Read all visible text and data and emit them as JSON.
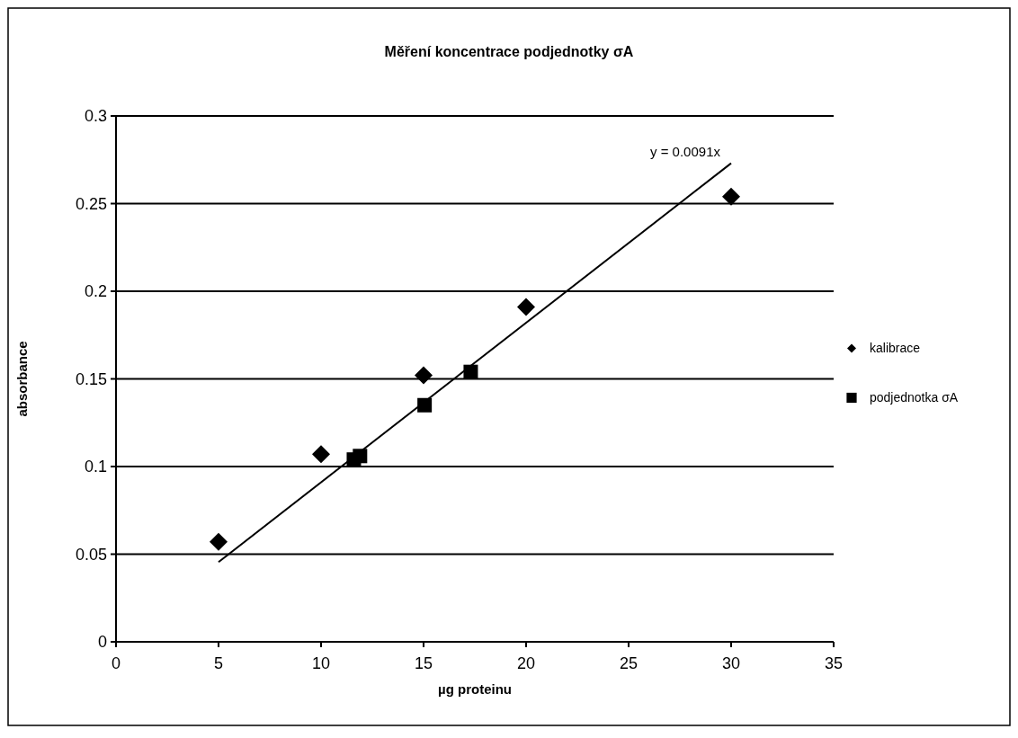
{
  "chart_data": {
    "type": "scatter",
    "title": "Měření koncentrace podjednotky σA",
    "xlabel": "µg proteinu",
    "ylabel": "absorbance",
    "xlim": [
      0,
      35
    ],
    "xticks": [
      0,
      5,
      10,
      15,
      20,
      25,
      30,
      35
    ],
    "ylim": [
      0,
      0.3
    ],
    "yticks": [
      0,
      0.05,
      0.1,
      0.15,
      0.2,
      0.25,
      0.3
    ],
    "grid": "y",
    "legend": "right",
    "annotations": [
      "y = 0.0091x"
    ],
    "series": [
      {
        "name": "kalibrace",
        "color": "#000000",
        "marker": "diamond",
        "x": [
          5,
          10,
          15,
          20,
          30
        ],
        "values": [
          0.057,
          0.107,
          0.152,
          0.191,
          0.254
        ]
      },
      {
        "name": "podjednotka σA",
        "color": "#000000",
        "marker": "square",
        "x": [
          11.6,
          11.9,
          15.05,
          17.3
        ],
        "values": [
          0.104,
          0.106,
          0.135,
          0.154
        ]
      },
      {
        "type": "line",
        "color": "#000000",
        "marker": "none",
        "line_style": "solid",
        "x": [
          5,
          30
        ],
        "values": [
          0.0455,
          0.273
        ]
      }
    ]
  }
}
